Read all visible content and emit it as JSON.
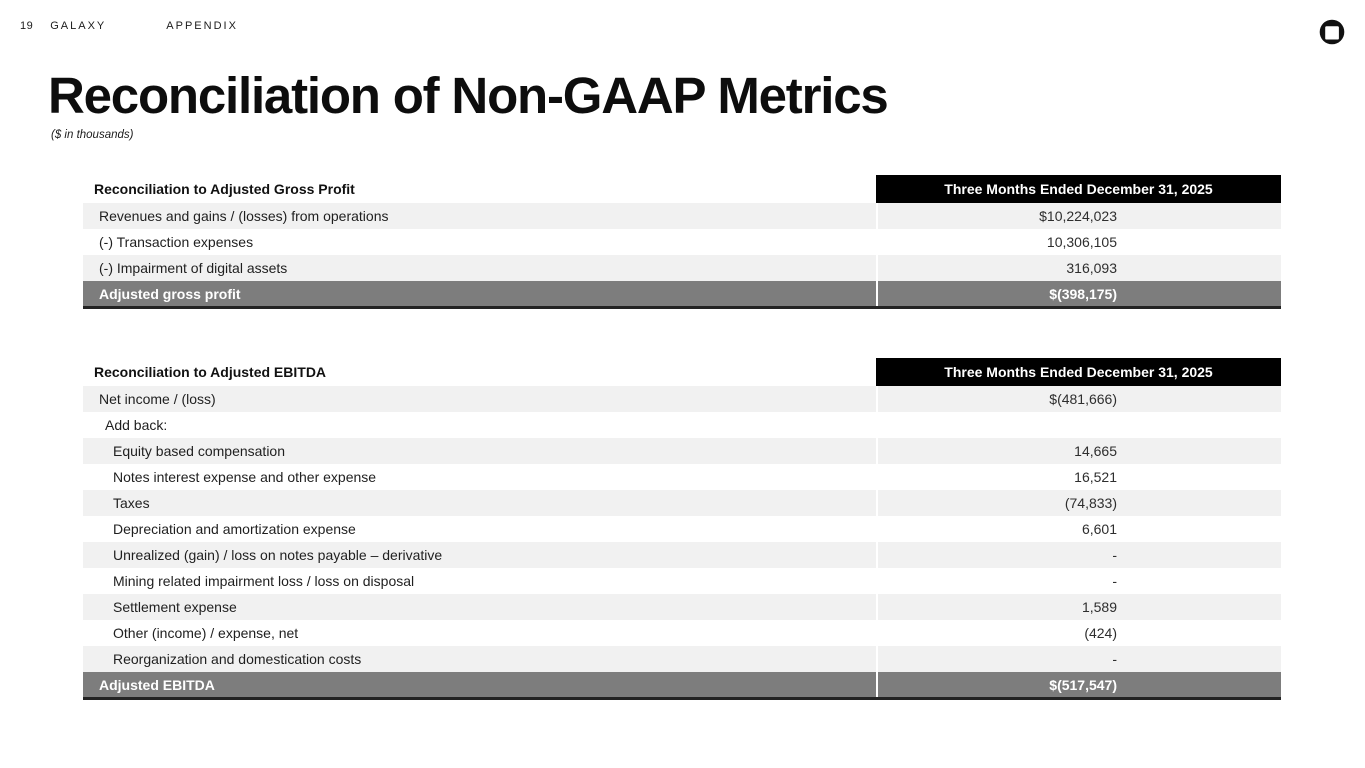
{
  "page": {
    "page_number": "19",
    "brand": "GALAXY",
    "section": "APPENDIX",
    "title": "Reconciliation of Non-GAAP Metrics",
    "subtitle": "($ in thousands)"
  },
  "colors": {
    "period_header_bg": "#000000",
    "period_header_text": "#ffffff",
    "total_row_bg": "#7d7d7d",
    "total_row_text": "#ffffff",
    "stripe_row_bg": "#f1f1f1",
    "table_bottom_border": "#232323",
    "logo_color": "#111111"
  },
  "tables": [
    {
      "title": "Reconciliation to Adjusted Gross Profit",
      "period_header": "Three Months Ended December 31, 2025",
      "rows": [
        {
          "label": "Revenues and gains / (losses) from operations",
          "value": "$10,224,023",
          "indent": 0
        },
        {
          "label": "(-) Transaction expenses",
          "value": "10,306,105",
          "indent": 0
        },
        {
          "label": "(-) Impairment of digital assets",
          "value": "316,093",
          "indent": 0
        }
      ],
      "total": {
        "label": "Adjusted gross profit",
        "value": "$(398,175)"
      }
    },
    {
      "title": "Reconciliation to Adjusted EBITDA",
      "period_header": "Three Months Ended December 31, 2025",
      "rows": [
        {
          "label": "Net income / (loss)",
          "value": "$(481,666)",
          "indent": 0
        },
        {
          "label": "Add back:",
          "value": "",
          "indent": 1
        },
        {
          "label": "Equity based compensation",
          "value": "14,665",
          "indent": 2
        },
        {
          "label": "Notes interest expense and other expense",
          "value": "16,521",
          "indent": 2
        },
        {
          "label": "Taxes",
          "value": "(74,833)",
          "indent": 2
        },
        {
          "label": "Depreciation and amortization expense",
          "value": "6,601",
          "indent": 2
        },
        {
          "label": "Unrealized (gain) / loss on notes payable – derivative",
          "value": "-",
          "indent": 2
        },
        {
          "label": "Mining related impairment loss / loss on disposal",
          "value": "-",
          "indent": 2
        },
        {
          "label": "Settlement expense",
          "value": "1,589",
          "indent": 2
        },
        {
          "label": "Other (income) / expense, net",
          "value": "(424)",
          "indent": 2
        },
        {
          "label": "Reorganization and domestication costs",
          "value": "-",
          "indent": 2
        }
      ],
      "total": {
        "label": "Adjusted EBITDA",
        "value": "$(517,547)"
      }
    }
  ]
}
